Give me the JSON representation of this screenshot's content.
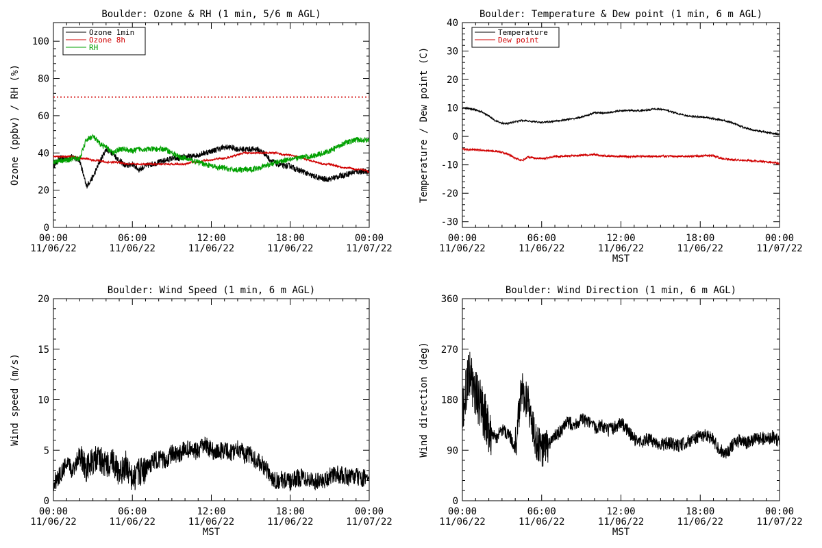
{
  "chart_data": [
    {
      "type": "line",
      "title": "Boulder: Ozone & RH (1 min, 5/6 m AGL)",
      "xlabel": "",
      "ylabel": "Ozone (ppbv) / RH (%)",
      "xlim": [
        "11/06/22 00:00",
        "11/07/22 00:00"
      ],
      "ylim": [
        0,
        110
      ],
      "x_tick_labels": [
        [
          "00:00",
          "11/06/22"
        ],
        [
          "06:00",
          "11/06/22"
        ],
        [
          "12:00",
          "11/06/22"
        ],
        [
          "18:00",
          "11/06/22"
        ],
        [
          "00:00",
          "11/07/22"
        ]
      ],
      "y_ticks": [
        0,
        20,
        40,
        60,
        80,
        100
      ],
      "legend_position": "top-left",
      "reference_line": {
        "y": 70,
        "color": "#d00000",
        "style": "dotted"
      },
      "x_hours": [
        0,
        0.5,
        1,
        1.5,
        2,
        2.5,
        3,
        3.5,
        4,
        4.5,
        5,
        5.5,
        6,
        6.5,
        7,
        7.5,
        8,
        8.5,
        9,
        9.5,
        10,
        10.5,
        11,
        11.5,
        12,
        12.5,
        13,
        13.5,
        14,
        14.5,
        15,
        15.5,
        16,
        16.5,
        17,
        17.5,
        18,
        18.5,
        19,
        19.5,
        20,
        20.5,
        21,
        21.5,
        22,
        22.5,
        23,
        23.5,
        24
      ],
      "series": [
        {
          "name": "Ozone 1min",
          "color": "#000000",
          "values": [
            33,
            37,
            37,
            38,
            36,
            22,
            27,
            35,
            42,
            40,
            36,
            33,
            34,
            31,
            33,
            34,
            35,
            36,
            37,
            37,
            38,
            38,
            39,
            40,
            41,
            42,
            43,
            43,
            42,
            42,
            42,
            42,
            40,
            36,
            34,
            33,
            33,
            31,
            30,
            28,
            27,
            26,
            26,
            27,
            28,
            29,
            30,
            30,
            30
          ]
        },
        {
          "name": "Ozone 8h",
          "color": "#d00000",
          "values": [
            38,
            38,
            38,
            38,
            37,
            37,
            36,
            36,
            35,
            35,
            35,
            34,
            34,
            34,
            34,
            34,
            34,
            34,
            34,
            34,
            34,
            35,
            35,
            36,
            36,
            37,
            37,
            38,
            39,
            40,
            40,
            40,
            40,
            40,
            40,
            39,
            39,
            38,
            37,
            36,
            35,
            34,
            34,
            33,
            32,
            32,
            31,
            31,
            30
          ]
        },
        {
          "name": "RH",
          "color": "#00a000",
          "values": [
            35,
            36,
            36,
            37,
            37,
            47,
            49,
            45,
            43,
            40,
            42,
            42,
            41,
            42,
            42,
            42,
            42,
            42,
            40,
            38,
            37,
            36,
            35,
            34,
            33,
            32,
            32,
            31,
            31,
            31,
            31,
            32,
            33,
            34,
            35,
            36,
            37,
            37,
            38,
            38,
            39,
            40,
            41,
            43,
            45,
            46,
            47,
            47,
            47
          ]
        }
      ]
    },
    {
      "type": "line",
      "title": "Boulder: Temperature & Dew point (1 min, 6 m AGL)",
      "xlabel": "MST",
      "ylabel": "Temperature / Dew point (C)",
      "xlim": [
        "11/06/22 00:00",
        "11/07/22 00:00"
      ],
      "ylim": [
        -32,
        40
      ],
      "x_tick_labels": [
        [
          "00:00",
          "11/06/22"
        ],
        [
          "06:00",
          "11/06/22"
        ],
        [
          "12:00",
          "11/06/22"
        ],
        [
          "18:00",
          "11/06/22"
        ],
        [
          "00:00",
          "11/07/22"
        ]
      ],
      "y_ticks": [
        -30,
        -20,
        -10,
        0,
        10,
        20,
        30,
        40
      ],
      "legend_position": "top-left",
      "x_hours": [
        0,
        0.5,
        1,
        1.5,
        2,
        2.5,
        3,
        3.5,
        4,
        4.5,
        5,
        5.5,
        6,
        6.5,
        7,
        7.5,
        8,
        8.5,
        9,
        9.5,
        10,
        10.5,
        11,
        11.5,
        12,
        12.5,
        13,
        13.5,
        14,
        14.5,
        15,
        15.5,
        16,
        16.5,
        17,
        17.5,
        18,
        18.5,
        19,
        19.5,
        20,
        20.5,
        21,
        21.5,
        22,
        22.5,
        23,
        23.5,
        24
      ],
      "series": [
        {
          "name": "Temperature",
          "color": "#000000",
          "values": [
            10,
            9.8,
            9.3,
            8.5,
            7.2,
            5.5,
            4.6,
            4.6,
            5.2,
            5.6,
            5.4,
            5.1,
            4.9,
            5.1,
            5.4,
            5.6,
            6.0,
            6.3,
            6.8,
            7.4,
            8.4,
            8.2,
            8.3,
            8.7,
            9.0,
            9.1,
            9.1,
            9.0,
            9.3,
            9.6,
            9.6,
            9.1,
            8.4,
            7.8,
            7.2,
            7.0,
            6.9,
            6.6,
            6.2,
            5.8,
            5.4,
            4.6,
            3.6,
            2.9,
            2.2,
            1.9,
            1.5,
            1.1,
            0.6
          ]
        },
        {
          "name": "Dew point",
          "color": "#d00000",
          "values": [
            -4.5,
            -4.6,
            -4.7,
            -4.9,
            -5.0,
            -5.2,
            -5.6,
            -6.4,
            -7.6,
            -8.5,
            -7.2,
            -7.6,
            -7.8,
            -7.5,
            -7.0,
            -7.1,
            -6.9,
            -6.8,
            -6.6,
            -6.5,
            -6.4,
            -6.7,
            -6.9,
            -7.0,
            -7.0,
            -7.1,
            -7.1,
            -7.0,
            -7.0,
            -7.0,
            -7.0,
            -7.0,
            -7.0,
            -7.0,
            -7.0,
            -6.9,
            -6.9,
            -6.8,
            -6.8,
            -7.6,
            -8.0,
            -8.2,
            -8.3,
            -8.4,
            -8.6,
            -8.8,
            -9.0,
            -9.2,
            -9.5
          ]
        }
      ]
    },
    {
      "type": "line",
      "title": "Boulder: Wind Speed (1 min, 6 m AGL)",
      "xlabel": "MST",
      "ylabel": "Wind speed (m/s)",
      "xlim": [
        "11/06/22 00:00",
        "11/07/22 00:00"
      ],
      "ylim": [
        0,
        20
      ],
      "x_tick_labels": [
        [
          "00:00",
          "11/06/22"
        ],
        [
          "06:00",
          "11/06/22"
        ],
        [
          "12:00",
          "11/06/22"
        ],
        [
          "18:00",
          "11/06/22"
        ],
        [
          "00:00",
          "11/07/22"
        ]
      ],
      "y_ticks": [
        0,
        5,
        10,
        15,
        20
      ],
      "x_hours": [
        0,
        0.5,
        1,
        1.5,
        2,
        2.5,
        3,
        3.5,
        4,
        4.5,
        5,
        5.5,
        6,
        6.5,
        7,
        7.5,
        8,
        8.5,
        9,
        9.5,
        10,
        10.5,
        11,
        11.5,
        12,
        12.5,
        13,
        13.5,
        14,
        14.5,
        15,
        15.5,
        16,
        16.5,
        17,
        17.5,
        18,
        18.5,
        19,
        19.5,
        20,
        20.5,
        21,
        21.5,
        22,
        22.5,
        23,
        23.5,
        24
      ],
      "series": [
        {
          "name": "",
          "color": "#000000",
          "values": [
            1.8,
            2.5,
            3.6,
            3.0,
            4.8,
            3.2,
            3.9,
            4.2,
            3.4,
            4.1,
            2.4,
            3.6,
            2.0,
            2.8,
            3.1,
            3.8,
            4.2,
            3.9,
            4.7,
            4.4,
            5.2,
            5.0,
            4.8,
            5.6,
            5.0,
            4.8,
            5.1,
            4.7,
            5.3,
            4.6,
            4.5,
            3.9,
            3.4,
            2.4,
            2.0,
            2.1,
            1.8,
            2.2,
            2.4,
            2.1,
            1.9,
            2.0,
            2.4,
            2.6,
            2.5,
            2.3,
            2.4,
            2.2,
            2.3
          ]
        }
      ]
    },
    {
      "type": "line",
      "title": "Boulder: Wind Direction (1 min, 6 m AGL)",
      "xlabel": "MST",
      "ylabel": "Wind direction (deg)",
      "xlim": [
        "11/06/22 00:00",
        "11/07/22 00:00"
      ],
      "ylim": [
        0,
        360
      ],
      "x_tick_labels": [
        [
          "00:00",
          "11/06/22"
        ],
        [
          "06:00",
          "11/06/22"
        ],
        [
          "12:00",
          "11/06/22"
        ],
        [
          "18:00",
          "11/06/22"
        ],
        [
          "00:00",
          "11/07/22"
        ]
      ],
      "y_ticks": [
        0,
        90,
        180,
        270,
        360
      ],
      "x_hours": [
        0,
        0.5,
        1,
        1.5,
        2,
        2.5,
        3,
        3.5,
        4,
        4.5,
        5,
        5.5,
        6,
        6.5,
        7,
        7.5,
        8,
        8.5,
        9,
        9.5,
        10,
        10.5,
        11,
        11.5,
        12,
        12.5,
        13,
        13.5,
        14,
        14.5,
        15,
        15.5,
        16,
        16.5,
        17,
        17.5,
        18,
        18.5,
        19,
        19.5,
        20,
        20.5,
        21,
        21.5,
        22,
        22.5,
        23,
        23.5,
        24
      ],
      "series": [
        {
          "name": "",
          "color": "#000000",
          "values": [
            150,
            230,
            190,
            165,
            130,
            110,
            125,
            120,
            95,
            200,
            170,
            110,
            90,
            100,
            115,
            125,
            140,
            135,
            145,
            140,
            130,
            135,
            125,
            130,
            140,
            125,
            110,
            105,
            110,
            105,
            100,
            102,
            100,
            98,
            105,
            110,
            115,
            118,
            108,
            90,
            85,
            100,
            108,
            102,
            108,
            112,
            110,
            115,
            105
          ]
        }
      ]
    }
  ]
}
